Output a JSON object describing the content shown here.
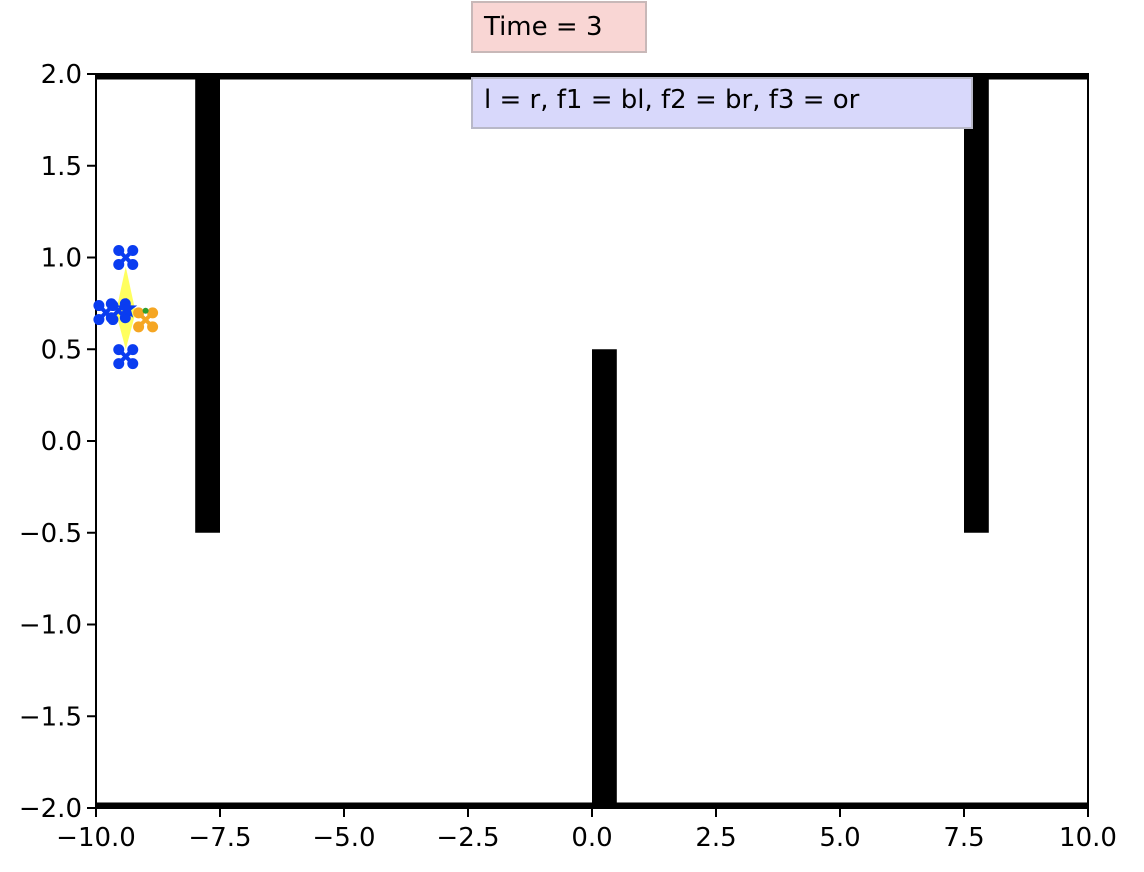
{
  "chart_data": {
    "type": "scatter",
    "title_box": {
      "text": "Time = 3",
      "bg": "#f9d6d4",
      "border": "#c8b8b8"
    },
    "legend_box": {
      "text": "l = r, f1 = bl, f2 = br, f3 = or",
      "bg": "#d8d8fb",
      "border": "#b8b8c8"
    },
    "xlim": [
      -10,
      10
    ],
    "ylim": [
      -2,
      2
    ],
    "x_ticks": [
      -10,
      -7.5,
      -5,
      -2.5,
      0,
      2.5,
      5,
      7.5,
      10
    ],
    "x_tick_labels": [
      "−10.0",
      "−7.5",
      "−5.0",
      "−2.5",
      "0.0",
      "2.5",
      "5.0",
      "7.5",
      "10.0"
    ],
    "y_ticks": [
      2,
      1.5,
      1,
      0.5,
      0,
      -0.5,
      -1,
      -1.5,
      -2
    ],
    "y_tick_labels": [
      "2.0",
      "1.5",
      "1.0",
      "0.5",
      "0.0",
      "−0.5",
      "−1.0",
      "−1.5",
      "−2.0"
    ],
    "grid": false,
    "walls": [
      {
        "x": [
          -8.0,
          -7.5
        ],
        "y": [
          -0.5,
          2.0
        ],
        "color": "#000000"
      },
      {
        "x": [
          0.0,
          0.5
        ],
        "y": [
          -2.0,
          0.5
        ],
        "color": "#000000"
      },
      {
        "x": [
          7.5,
          8.0
        ],
        "y": [
          -0.5,
          2.0
        ],
        "color": "#000000"
      },
      {
        "x": [
          -10,
          10
        ],
        "y": [
          1.97,
          2.0
        ],
        "color": "#000000"
      },
      {
        "x": [
          -10,
          10
        ],
        "y": [
          -2.0,
          -1.97
        ],
        "color": "#000000"
      }
    ],
    "formation_region": {
      "color": "#ffff44",
      "points": [
        [
          -9.4,
          0.95
        ],
        [
          -9.2,
          0.7
        ],
        [
          -9.4,
          0.5
        ],
        [
          -9.6,
          0.7
        ]
      ]
    },
    "drones": [
      {
        "name": "f1",
        "x": -9.4,
        "y": 1.0,
        "color": "#0a3cf0"
      },
      {
        "name": "f2",
        "x": -9.4,
        "y": 0.46,
        "color": "#0a3cf0"
      },
      {
        "name": "f3",
        "x": -9.8,
        "y": 0.7,
        "color": "#0a3cf0"
      },
      {
        "name": "l",
        "x": -9.55,
        "y": 0.71,
        "color": "#0a3cf0"
      },
      {
        "name": "or",
        "x": -9.0,
        "y": 0.66,
        "color": "#f5a623"
      }
    ],
    "leader_star": {
      "x": -9.38,
      "y": 0.72,
      "color": "#0a3cf0"
    },
    "green_marker": {
      "x": -9.0,
      "y": 0.71,
      "color": "#2e9e2e"
    }
  }
}
